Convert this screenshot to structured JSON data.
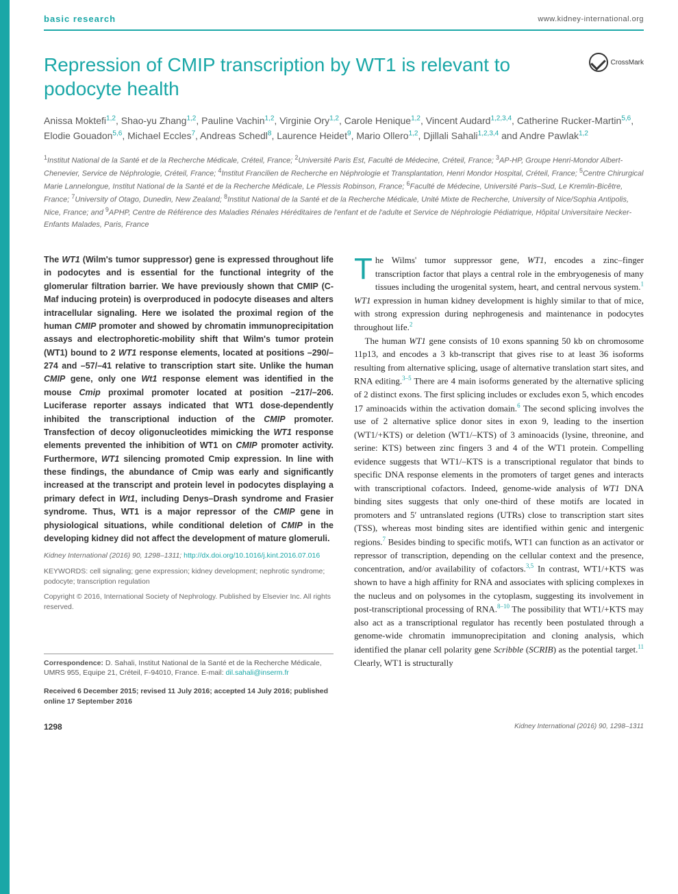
{
  "header": {
    "section_label": "basic research",
    "journal_url": "www.kidney-international.org"
  },
  "crossmark_label": "CrossMark",
  "title": "Repression of CMIP transcription by WT1 is relevant to podocyte health",
  "authors_html": "Anissa Moktefi<sup>1,2</sup>, Shao-yu Zhang<sup>1,2</sup>, Pauline Vachin<sup>1,2</sup>, Virginie Ory<sup>1,2</sup>, Carole Henique<sup>1,2</sup>, Vincent Audard<sup>1,2,3,4</sup>, Catherine Rucker-Martin<sup>5,6</sup>, Elodie Gouadon<sup>5,6</sup>, Michael Eccles<sup>7</sup>, Andreas Schedl<sup>8</sup>, Laurence Heidet<sup>9</sup>, Mario Ollero<sup>1,2</sup>, Djillali Sahali<sup>1,2,3,4</sup> and Andre Pawlak<sup>1,2</sup>",
  "affiliations_html": "<sup>1</sup>Institut National de la Santé et de la Recherche Médicale, Créteil, France; <sup>2</sup>Université Paris Est, Faculté de Médecine, Créteil, France; <sup>3</sup>AP-HP, Groupe Henri-Mondor Albert-Chenevier, Service de Néphrologie, Créteil, France; <sup>4</sup>Institut Francilien de Recherche en Néphrologie et Transplantation, Henri Mondor Hospital, Créteil, France; <sup>5</sup>Centre Chirurgical Marie Lannelongue, Institut National de la Santé et de la Recherche Médicale, Le Plessis Robinson, France; <sup>6</sup>Faculté de Médecine, Université Paris–Sud, Le Kremlin-Bicêtre, France; <sup>7</sup>University of Otago, Dunedin, New Zealand; <sup>8</sup>Institut National de la Santé et de la Recherche Médicale, Unité Mixte de Recherche, University of Nice/Sophia Antipolis, Nice, France; and <sup>9</sup>APHP, Centre de Référence des Maladies Rénales Héréditaires de l'enfant et de l'adulte et Service de Néphrologie Pédiatrique, Hôpital Universitaire Necker-Enfants Malades, Paris, France",
  "abstract_html": "The <em>WT1</em> (Wilm's tumor suppressor) gene is expressed throughout life in podocytes and is essential for the functional integrity of the glomerular filtration barrier. We have previously shown that CMIP (C-Maf inducing protein) is overproduced in podocyte diseases and alters intracellular signaling. Here we isolated the proximal region of the human <em>CMIP</em> promoter and showed by chromatin immunoprecipitation assays and electrophoretic-mobility shift that Wilm's tumor protein (WT1) bound to 2 <em>WT1</em> response elements, located at positions –290/–274 and –57/–41 relative to transcription start site. Unlike the human <em>CMIP</em> gene, only one <em>Wt1</em> response element was identified in the mouse <em>Cmip</em> proximal promoter located at position –217/–206. Luciferase reporter assays indicated that WT1 dose-dependently inhibited the transcriptional induction of the <em>CMIP</em> promoter. Transfection of decoy oligonucleotides mimicking the <em>WT1</em> response elements prevented the inhibition of WT1 on <em>CMIP</em> promoter activity. Furthermore, <em>WT1</em> silencing promoted Cmip expression. In line with these findings, the abundance of Cmip was early and significantly increased at the transcript and protein level in podocytes displaying a primary defect in <em>Wt1</em>, including Denys–Drash syndrome and Frasier syndrome. Thus, WT1 is a major repressor of the <em>CMIP</em> gene in physiological situations, while conditional deletion of <em>CMIP</em> in the developing kidney did not affect the development of mature glomeruli.",
  "citation": {
    "text": "Kidney International (2016) 90, 1298–1311; ",
    "doi_url": "http://dx.doi.org/10.1016/j.kint.2016.07.016",
    "doi_text": "http://dx.doi.org/10.1016/j.kint.2016.07.016"
  },
  "keywords": "KEYWORDS: cell signaling; gene expression; kidney development; nephrotic syndrome; podocyte; transcription regulation",
  "copyright": "Copyright © 2016, International Society of Nephrology. Published by Elsevier Inc. All rights reserved.",
  "correspondence_html": "<b>Correspondence:</b> D. Sahali, Institut National de la Santé et de la Recherche Médicale, UMRS 955, Equipe 21, Créteil, F-94010, France. E-mail: <a href=\"#\">dil.sahali@inserm.fr</a>",
  "received": "Received 6 December 2015; revised 11 July 2016; accepted 14 July 2016; published online 17 September 2016",
  "body_p1_html": "he Wilms' tumor suppressor gene, <em>WT1</em>, encodes a zinc–finger transcription factor that plays a central role in the embryogenesis of many tissues including the urogenital system, heart, and central nervous system.<sup>1</sup> <em>WT1</em> expression in human kidney development is highly similar to that of mice, with strong expression during nephrogenesis and maintenance in podocytes throughout life.<sup>2</sup>",
  "body_p2_html": "The human <em>WT1</em> gene consists of 10 exons spanning 50 kb on chromosome 11p13, and encodes a 3 kb-transcript that gives rise to at least 36 isoforms resulting from alternative splicing, usage of alternative translation start sites, and RNA editing.<sup>3–5</sup> There are 4 main isoforms generated by the alternative splicing of 2 distinct exons. The first splicing includes or excludes exon 5, which encodes 17 aminoacids within the activation domain.<sup>6</sup> The second splicing involves the use of 2 alternative splice donor sites in exon 9, leading to the insertion (WT1/+KTS) or deletion (WT1/–KTS) of 3 aminoacids (lysine, threonine, and serine: KTS) between zinc fingers 3 and 4 of the WT1 protein. Compelling evidence suggests that WT1/–KTS is a transcriptional regulator that binds to specific DNA response elements in the promoters of target genes and interacts with transcriptional cofactors. Indeed, genome-wide analysis of <em>WT1</em> DNA binding sites suggests that only one-third of these motifs are located in promoters and 5′ untranslated regions (UTRs) close to transcription start sites (TSS), whereas most binding sites are identified within genic and intergenic regions.<sup>7</sup> Besides binding to specific motifs, WT1 can function as an activator or repressor of transcription, depending on the cellular context and the presence, concentration, and/or availability of cofactors.<sup>3,5</sup> In contrast, WT1/+KTS was shown to have a high affinity for RNA and associates with splicing complexes in the nucleus and on polysomes in the cytoplasm, suggesting its involvement in post-transcriptional processing of RNA.<sup>8–10</sup> The possibility that WT1/+KTS may also act as a transcriptional regulator has recently been postulated through a genome-wide chromatin immunoprecipitation and cloning analysis, which identified the planar cell polarity gene <em>Scribble</em> (<em>SCRIB</em>) as the potential target.<sup>11</sup> Clearly, WT1 is structurally",
  "footer": {
    "page_number": "1298",
    "citation": "Kidney International (2016) 90, 1298–1311"
  },
  "colors": {
    "teal": "#1aa7a7",
    "text": "#333333",
    "muted": "#666666"
  }
}
